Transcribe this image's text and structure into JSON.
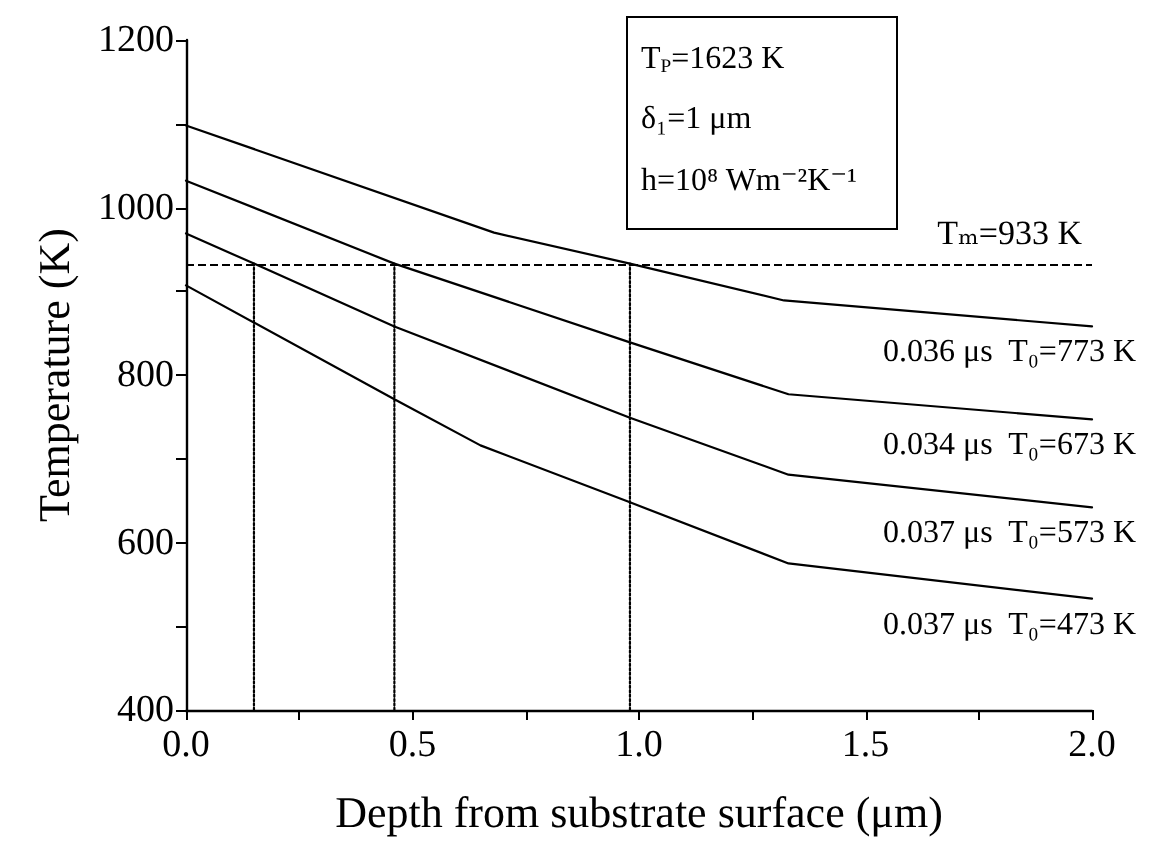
{
  "chart_data": {
    "type": "line",
    "xlabel": "Depth from substrate surface (μm)",
    "ylabel": "Temperature (K)",
    "xlim": [
      0,
      2
    ],
    "xticks": [
      {
        "value": 0,
        "label": "0.0"
      },
      {
        "value": 0.25,
        "label": null
      },
      0.5,
      {
        "value": 0.75,
        "label": null
      },
      {
        "value": 1,
        "label": "1.0"
      },
      {
        "value": 1.25,
        "label": null
      },
      1.5,
      {
        "value": 1.75,
        "label": null
      },
      {
        "value": 2,
        "label": "2.0"
      }
    ],
    "ylim": [
      400,
      1200
    ],
    "yticks": [
      400,
      {
        "value": 500,
        "label": null
      },
      600,
      {
        "value": 700,
        "label": null
      },
      800,
      {
        "value": 900,
        "label": null
      },
      1000,
      {
        "value": 1100,
        "label": null
      },
      1200
    ],
    "grid": false,
    "legend": false,
    "marker": "none",
    "line_style": "solid",
    "series": [
      {
        "name": "0.036 μs  T₀=773 K",
        "color": "#000000",
        "x": [
          0,
          0.68,
          0.98,
          1.32,
          2.0
        ],
        "values": [
          1098,
          970,
          933,
          889,
          858
        ]
      },
      {
        "name": "0.034 μs  T₀=673 K",
        "color": "#000000",
        "x": [
          0,
          0.46,
          0.98,
          1.33,
          2.0
        ],
        "values": [
          1032,
          933,
          839,
          777,
          747
        ]
      },
      {
        "name": "0.037 μs  T₀=573 K",
        "color": "#000000",
        "x": [
          0,
          0.15,
          0.46,
          0.98,
          1.33,
          2.0
        ],
        "values": [
          969,
          933,
          858,
          749,
          681,
          642
        ]
      },
      {
        "name": "0.037 μs  T₀=473 K",
        "color": "#000000",
        "x": [
          0,
          0.46,
          0.65,
          0.98,
          1.33,
          2.0
        ],
        "values": [
          907,
          771,
          716,
          648,
          575,
          533
        ]
      },
      {
        "color": "#000000",
        "line_style": "dotted",
        "x": [
          0.15,
          0.15
        ],
        "values": [
          400,
          933
        ]
      },
      {
        "color": "#000000",
        "line_style": "dotted",
        "x": [
          0.46,
          0.46
        ],
        "values": [
          400,
          933
        ]
      },
      {
        "color": "#000000",
        "line_style": "dotted",
        "x": [
          0.98,
          0.98
        ],
        "values": [
          400,
          933
        ]
      }
    ],
    "ref_lines": [
      {
        "axis": "y",
        "value": 933,
        "label": "Tₘ=933 K",
        "color": "#000000",
        "line_style": "dashed"
      }
    ],
    "annotations": [
      "T$_{P}$=1623 K",
      "δ₁=1 μm",
      "h=10⁸ Wm⁻²K⁻¹"
    ]
  }
}
